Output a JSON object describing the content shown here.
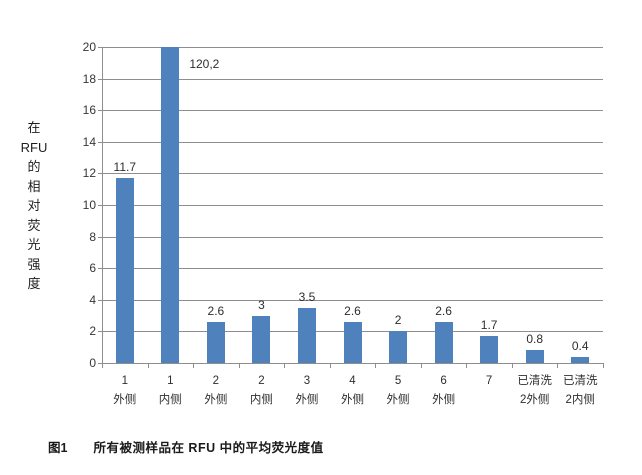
{
  "figure": {
    "caption_tag": "图1",
    "caption_text": "所有被测样品在 RFU 中的平均荧光度值"
  },
  "chart_data": {
    "type": "bar",
    "title": "",
    "xlabel": "",
    "ylabel": "在RFU的相对荧光强度",
    "ylabel_stacked_lines": [
      "在",
      "RFU",
      "的",
      "相",
      "对",
      "荧",
      "光",
      "强",
      "度"
    ],
    "ylim": [
      0,
      20
    ],
    "yticks": [
      0,
      2,
      4,
      6,
      8,
      10,
      12,
      14,
      16,
      18,
      20
    ],
    "grid": true,
    "legend_position": "none",
    "categories": [
      "1外侧",
      "1内侧",
      "2外侧",
      "2内侧",
      "3外侧",
      "4外侧",
      "5外侧",
      "6外侧",
      "7",
      "已清洗2外侧",
      "已清洗2内侧"
    ],
    "category_label_lines": [
      [
        "1",
        "外侧"
      ],
      [
        "1",
        "内侧"
      ],
      [
        "2",
        "外侧"
      ],
      [
        "2",
        "内侧"
      ],
      [
        "3",
        "外侧"
      ],
      [
        "4",
        "外侧"
      ],
      [
        "5",
        "外侧"
      ],
      [
        "6",
        "外侧"
      ],
      [
        "7"
      ],
      [
        "已清洗",
        "2外侧"
      ],
      [
        "已清洗",
        "2内侧"
      ]
    ],
    "values": [
      11.7,
      120.2,
      2.6,
      3,
      3.5,
      2.6,
      2,
      2.6,
      1.7,
      0.8,
      0.4
    ],
    "value_labels": [
      "11.7",
      "120,2",
      "2.6",
      "3",
      "3.5",
      "2.6",
      "2",
      "2.6",
      "1.7",
      "0.8",
      "0.4"
    ],
    "bar_color": "#4F81BD",
    "grid_color": "#8E8E8E",
    "axis_color": "#8E8E8E",
    "text_color": "#2E2E2E"
  }
}
